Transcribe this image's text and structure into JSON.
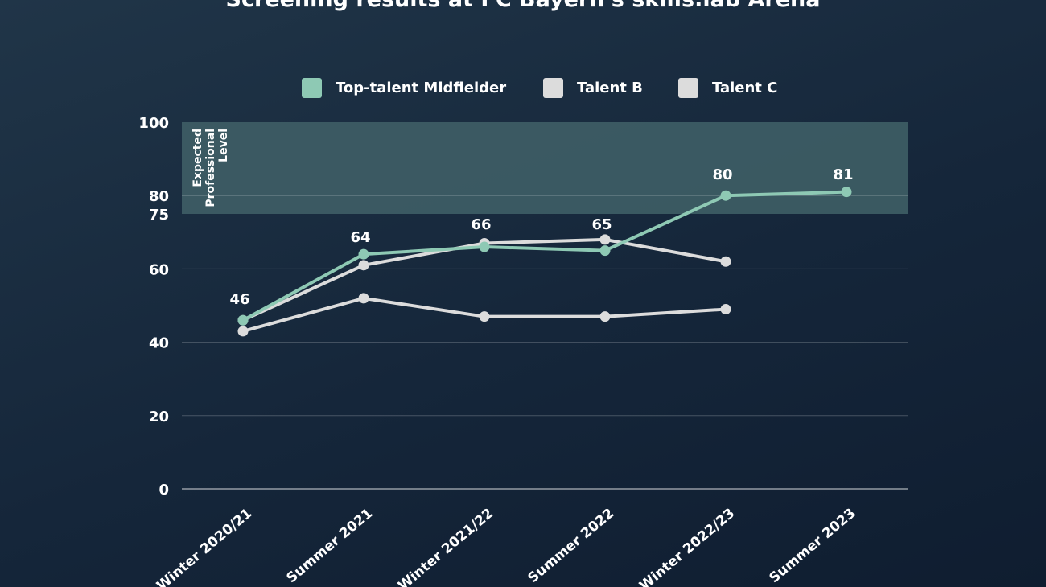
{
  "chart_data": {
    "type": "line",
    "title": "Screening results at FC Bayern's skills.lab Arena",
    "categories": [
      "Winter 2020/21",
      "Summer 2021",
      "Winter 2021/22",
      "Summer 2022",
      "Winter 2022/23",
      "Summer 2023"
    ],
    "ylim": [
      0,
      100
    ],
    "yticks": [
      0,
      20,
      40,
      60,
      75,
      80,
      100
    ],
    "grid": true,
    "legend_position": "top-center",
    "band": {
      "from": 75,
      "to": 100,
      "label_lines": [
        "Expected",
        "Professional",
        "Level"
      ],
      "color": "#3e5d65"
    },
    "series": [
      {
        "name": "Top-talent Midfielder",
        "color": "#8ec9b4",
        "values": [
          46,
          64,
          66,
          65,
          80,
          81
        ],
        "labels": [
          "46",
          "64",
          "66",
          "65",
          "80",
          "81"
        ]
      },
      {
        "name": "Talent B",
        "color": "#dcdcdc",
        "values": [
          46,
          61,
          67,
          68,
          62,
          null
        ],
        "labels": []
      },
      {
        "name": "Talent C",
        "color": "#dcdcdc",
        "values": [
          43,
          52,
          47,
          47,
          49,
          null
        ],
        "labels": []
      }
    ]
  }
}
